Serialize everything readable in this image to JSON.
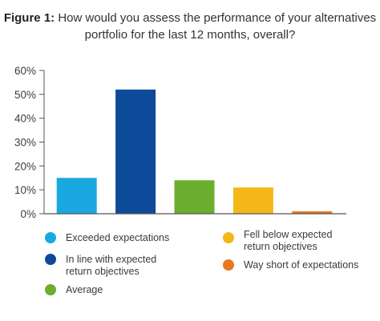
{
  "title": {
    "prefix": "Figure 1:",
    "text": " How would you assess the performance of your alternatives portfolio for the last 12 months, overall?"
  },
  "chart_data": {
    "type": "bar",
    "categories": [
      "Exceeded expectations",
      "In line with expected return objectives",
      "Average",
      "Fell below expected return objectives",
      "Way short of expectations"
    ],
    "values": [
      15,
      52,
      14,
      11,
      1
    ],
    "colors": [
      "#1aa8e0",
      "#0d4a9a",
      "#6cae2e",
      "#f4b71a",
      "#e87722"
    ],
    "ylim": [
      0,
      60
    ],
    "yticks": [
      0,
      10,
      20,
      30,
      40,
      50,
      60
    ],
    "ytick_labels": [
      "0%",
      "10%",
      "20%",
      "30%",
      "40%",
      "50%",
      "60%"
    ],
    "legend_position": "bottom",
    "grid": false
  }
}
